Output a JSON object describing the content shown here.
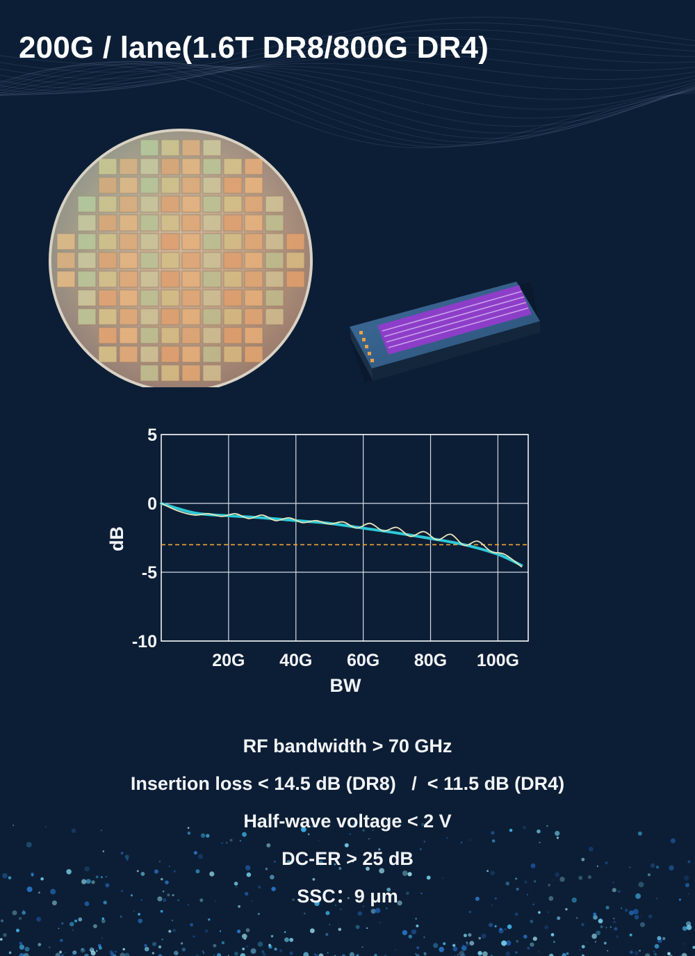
{
  "title": "200G / lane(1.6T DR8/800G DR4)",
  "images": {
    "wafer": "silicon-wafer-photo",
    "chip": "modulator-chip-photo"
  },
  "chart_data": {
    "type": "line",
    "title": "",
    "xlabel": "BW",
    "ylabel": "dB",
    "xlim": [
      0,
      109
    ],
    "ylim": [
      -10,
      5
    ],
    "x_ticks": [
      {
        "value": 20,
        "label": "20G"
      },
      {
        "value": 40,
        "label": "40G"
      },
      {
        "value": 60,
        "label": "60G"
      },
      {
        "value": 80,
        "label": "80G"
      },
      {
        "value": 100,
        "label": "100G"
      }
    ],
    "y_ticks": [
      {
        "value": 5,
        "label": "5"
      },
      {
        "value": 0,
        "label": "0"
      },
      {
        "value": -5,
        "label": "-5"
      },
      {
        "value": -10,
        "label": "-10"
      }
    ],
    "grid": true,
    "series": [
      {
        "color": "#2ec9d6",
        "style": "smooth",
        "x": [
          0,
          10,
          20,
          30,
          40,
          50,
          60,
          70,
          80,
          90,
          100,
          107
        ],
        "y": [
          0,
          -0.7,
          -0.9,
          -1.05,
          -1.25,
          -1.45,
          -1.8,
          -2.15,
          -2.55,
          -3.0,
          -3.7,
          -4.5
        ]
      },
      {
        "color": "#e8e4bc",
        "style": "measured",
        "x": [
          0,
          5,
          10,
          14,
          18,
          22,
          26,
          30,
          34,
          38,
          42,
          46,
          50,
          54,
          58,
          62,
          66,
          70,
          74,
          78,
          82,
          86,
          90,
          94,
          98,
          102,
          107
        ],
        "y": [
          0,
          -0.55,
          -0.85,
          -0.75,
          -0.95,
          -0.75,
          -1.1,
          -0.85,
          -1.25,
          -1.05,
          -1.4,
          -1.25,
          -1.5,
          -1.35,
          -1.8,
          -1.45,
          -2.0,
          -1.75,
          -2.4,
          -2.05,
          -2.65,
          -2.25,
          -3.05,
          -2.75,
          -3.5,
          -3.7,
          -4.6
        ]
      }
    ],
    "reference_line": {
      "y": -3,
      "color": "#f0a53a",
      "style": "dashed"
    }
  },
  "specs": [
    "RF bandwidth > 70 GHz",
    "Insertion loss < 14.5 dB (DR8)   /  < 11.5 dB (DR4)",
    "Half-wave voltage < 2 V",
    "DC-ER > 25 dB",
    "SSC：9 μm"
  ]
}
